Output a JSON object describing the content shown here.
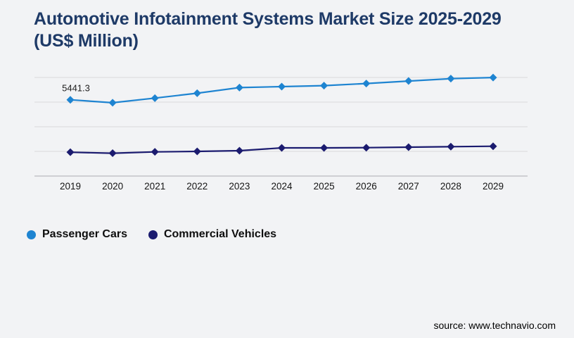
{
  "page": {
    "background": "#f2f3f5"
  },
  "header": {
    "title_line1": "Automotive Infotainment Systems Market Size 2025-2029",
    "title_line2": "(US$ Million)",
    "title_color": "#1e3a67"
  },
  "chart_data": {
    "type": "line",
    "title": "Automotive Infotainment Systems Market Size 2025-2029 (US$ Million)",
    "xlabel": "",
    "ylabel": "",
    "categories": [
      "2019",
      "2020",
      "2021",
      "2022",
      "2023",
      "2024",
      "2025",
      "2026",
      "2027",
      "2028",
      "2029"
    ],
    "series": [
      {
        "name": "Passenger Cars",
        "color": "#1e84d1",
        "marker": "diamond",
        "values": [
          5441.3,
          5230,
          5560,
          5910,
          6310,
          6380,
          6450,
          6600,
          6780,
          6950,
          7030
        ]
      },
      {
        "name": "Commercial Vehicles",
        "color": "#1b1b6f",
        "marker": "diamond",
        "values": [
          1700,
          1630,
          1725,
          1760,
          1810,
          2010,
          2010,
          2025,
          2060,
          2095,
          2125
        ]
      }
    ],
    "data_labels": [
      {
        "series": "Passenger Cars",
        "category": "2019",
        "text": "5441.3"
      }
    ],
    "grid": "horizontal",
    "gridline_color": "#d9d9dc",
    "axis_line_color": "#c3c3c8",
    "x_tick_color": "#151515",
    "legend_position": "bottom-left",
    "y_axis_labels_visible": false
  },
  "legend": {
    "items": [
      {
        "label": "Passenger Cars",
        "color": "#1e84d1"
      },
      {
        "label": "Commercial Vehicles",
        "color": "#1b1b6f"
      }
    ]
  },
  "footer": {
    "source": "source: www.technavio.com"
  }
}
